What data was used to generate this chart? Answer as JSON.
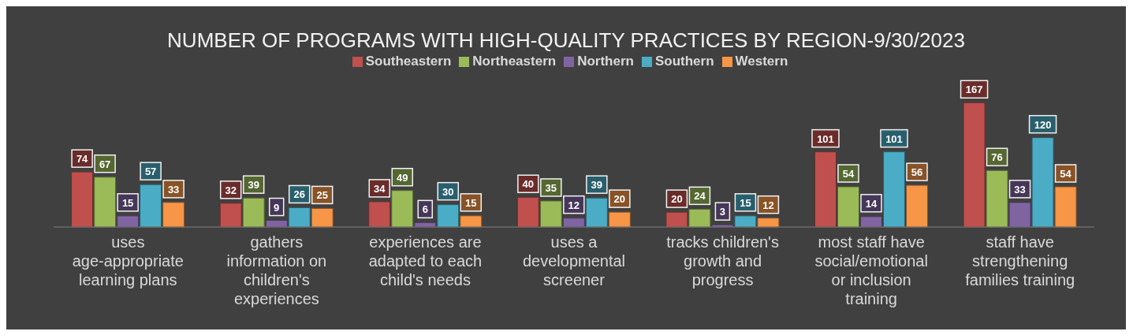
{
  "chart_data": {
    "type": "bar",
    "title": "NUMBER OF PROGRAMS WITH HIGH-QUALITY PRACTICES BY REGION-9/30/2023",
    "categories": [
      "uses age-appropriate learning plans",
      "gathers information on children's experiences",
      "experiences are adapted to each child's needs",
      "uses a developmental screener",
      "tracks children's growth and progress",
      "most staff have social/emotional or inclusion training",
      "staff have strengthening families training"
    ],
    "series": [
      {
        "name": "Southeastern",
        "color": "#c0504d",
        "values": [
          74,
          32,
          34,
          40,
          20,
          101,
          167
        ]
      },
      {
        "name": "Northeastern",
        "color": "#9bbb59",
        "values": [
          67,
          39,
          49,
          35,
          24,
          54,
          76
        ]
      },
      {
        "name": "Northern",
        "color": "#8064a2",
        "values": [
          15,
          9,
          6,
          12,
          3,
          14,
          33
        ]
      },
      {
        "name": "Southern",
        "color": "#4bacc6",
        "values": [
          57,
          26,
          30,
          39,
          15,
          101,
          120
        ]
      },
      {
        "name": "Western",
        "color": "#f79646",
        "values": [
          33,
          25,
          15,
          20,
          12,
          56,
          54
        ]
      }
    ],
    "data_labels": true,
    "legend": "top"
  }
}
